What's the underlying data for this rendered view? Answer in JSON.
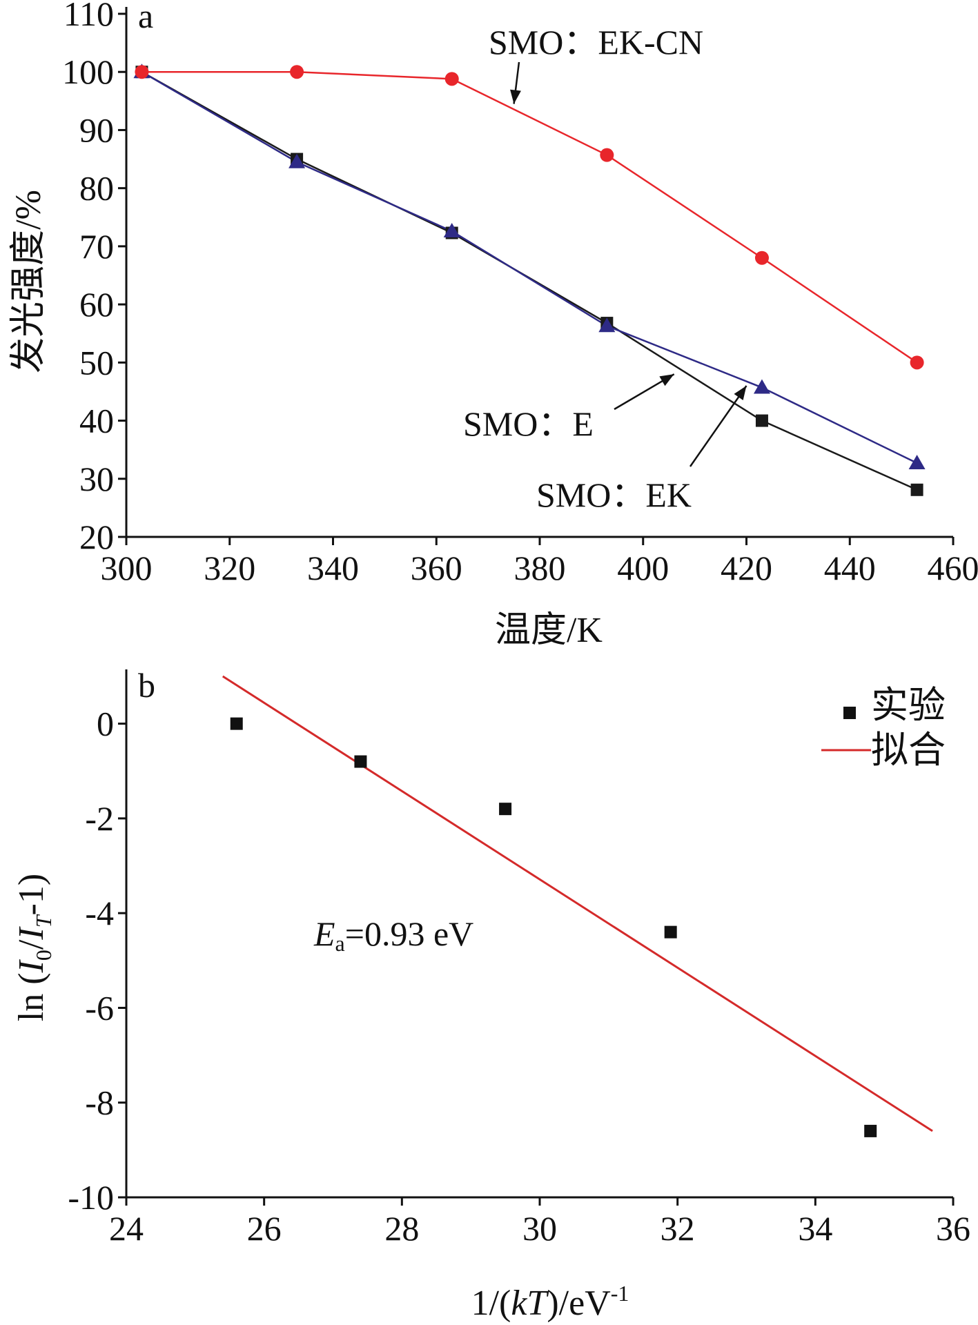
{
  "chart_data": [
    {
      "panel": "a",
      "type": "line",
      "xlabel": "温度/K",
      "ylabel": "发光强度/%",
      "xlim": [
        300,
        460
      ],
      "ylim": [
        20,
        110
      ],
      "xticks": [
        300,
        320,
        340,
        360,
        380,
        400,
        420,
        440,
        460
      ],
      "yticks": [
        20,
        30,
        40,
        50,
        60,
        70,
        80,
        90,
        100,
        110
      ],
      "series": [
        {
          "name": "SMO: EK-CN",
          "color": "#e8262b",
          "marker": "circle",
          "x": [
            303,
            333,
            363,
            393,
            423,
            453
          ],
          "y": [
            100,
            100,
            98.8,
            85.7,
            68,
            50
          ]
        },
        {
          "name": "SMO: E",
          "color": "#1a1a1a",
          "marker": "square",
          "x": [
            303,
            333,
            363,
            393,
            423,
            453
          ],
          "y": [
            100,
            85,
            72.3,
            56.8,
            40,
            28.1
          ]
        },
        {
          "name": "SMO: EK",
          "color": "#2e2a86",
          "marker": "triangle",
          "x": [
            303,
            333,
            363,
            393,
            423,
            453
          ],
          "y": [
            100,
            84.5,
            72.6,
            56.3,
            45.7,
            32.7
          ]
        }
      ],
      "annotations": [
        {
          "text": "SMO：EK-CN",
          "points_to": [
            375,
            94.5
          ]
        },
        {
          "text": "SMO：E",
          "points_to": [
            406,
            48
          ]
        },
        {
          "text": "SMO：EK",
          "points_to": [
            420,
            46
          ]
        }
      ]
    },
    {
      "panel": "b",
      "type": "scatter",
      "xlabel": "1/(kT)/eV⁻¹",
      "ylabel": "ln (I0/IT-1)",
      "xlim": [
        24,
        36
      ],
      "ylim": [
        -10,
        1
      ],
      "xticks": [
        24,
        26,
        28,
        30,
        32,
        34,
        36
      ],
      "yticks": [
        0,
        -2,
        -4,
        -6,
        -8,
        -10
      ],
      "series": [
        {
          "name": "实验",
          "color": "#111111",
          "marker": "square",
          "x": [
            25.6,
            27.4,
            29.5,
            31.9,
            34.8
          ],
          "y": [
            0,
            -0.8,
            -1.8,
            -4.4,
            -8.6
          ]
        },
        {
          "name": "拟合",
          "color": "#d42a2a",
          "marker": "none",
          "x": [
            25.4,
            35.7
          ],
          "y": [
            1.0,
            -8.6
          ]
        }
      ],
      "annotation": {
        "symbol": "E",
        "subscript": "a",
        "text": "=0.93 eV"
      },
      "legend": "top-right"
    }
  ]
}
